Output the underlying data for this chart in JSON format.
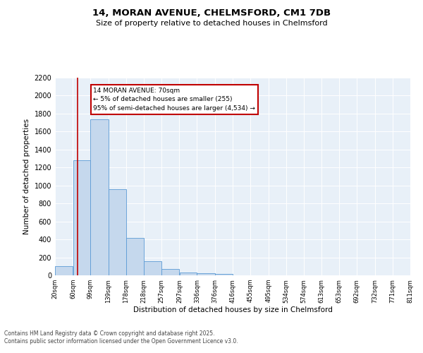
{
  "title_line1": "14, MORAN AVENUE, CHELMSFORD, CM1 7DB",
  "title_line2": "Size of property relative to detached houses in Chelmsford",
  "xlabel": "Distribution of detached houses by size in Chelmsford",
  "ylabel": "Number of detached properties",
  "footer_line1": "Contains HM Land Registry data © Crown copyright and database right 2025.",
  "footer_line2": "Contains public sector information licensed under the Open Government Licence v3.0.",
  "annotation_title": "14 MORAN AVENUE: 70sqm",
  "annotation_line2": "← 5% of detached houses are smaller (255)",
  "annotation_line3": "95% of semi-detached houses are larger (4,534) →",
  "property_size": 70,
  "bar_edges": [
    20,
    60,
    99,
    139,
    178,
    218,
    257,
    297,
    336,
    376,
    416,
    455,
    495,
    534,
    574,
    613,
    653,
    692,
    732,
    771,
    811
  ],
  "bar_heights": [
    100,
    1280,
    1740,
    960,
    420,
    155,
    70,
    35,
    25,
    15,
    0,
    0,
    0,
    0,
    0,
    0,
    0,
    0,
    0,
    0
  ],
  "bar_color": "#c5d8ed",
  "bar_edge_color": "#5b9bd5",
  "line_color": "#c00000",
  "background_color": "#e8f0f8",
  "ylim": [
    0,
    2200
  ],
  "yticks": [
    0,
    200,
    400,
    600,
    800,
    1000,
    1200,
    1400,
    1600,
    1800,
    2000,
    2200
  ]
}
